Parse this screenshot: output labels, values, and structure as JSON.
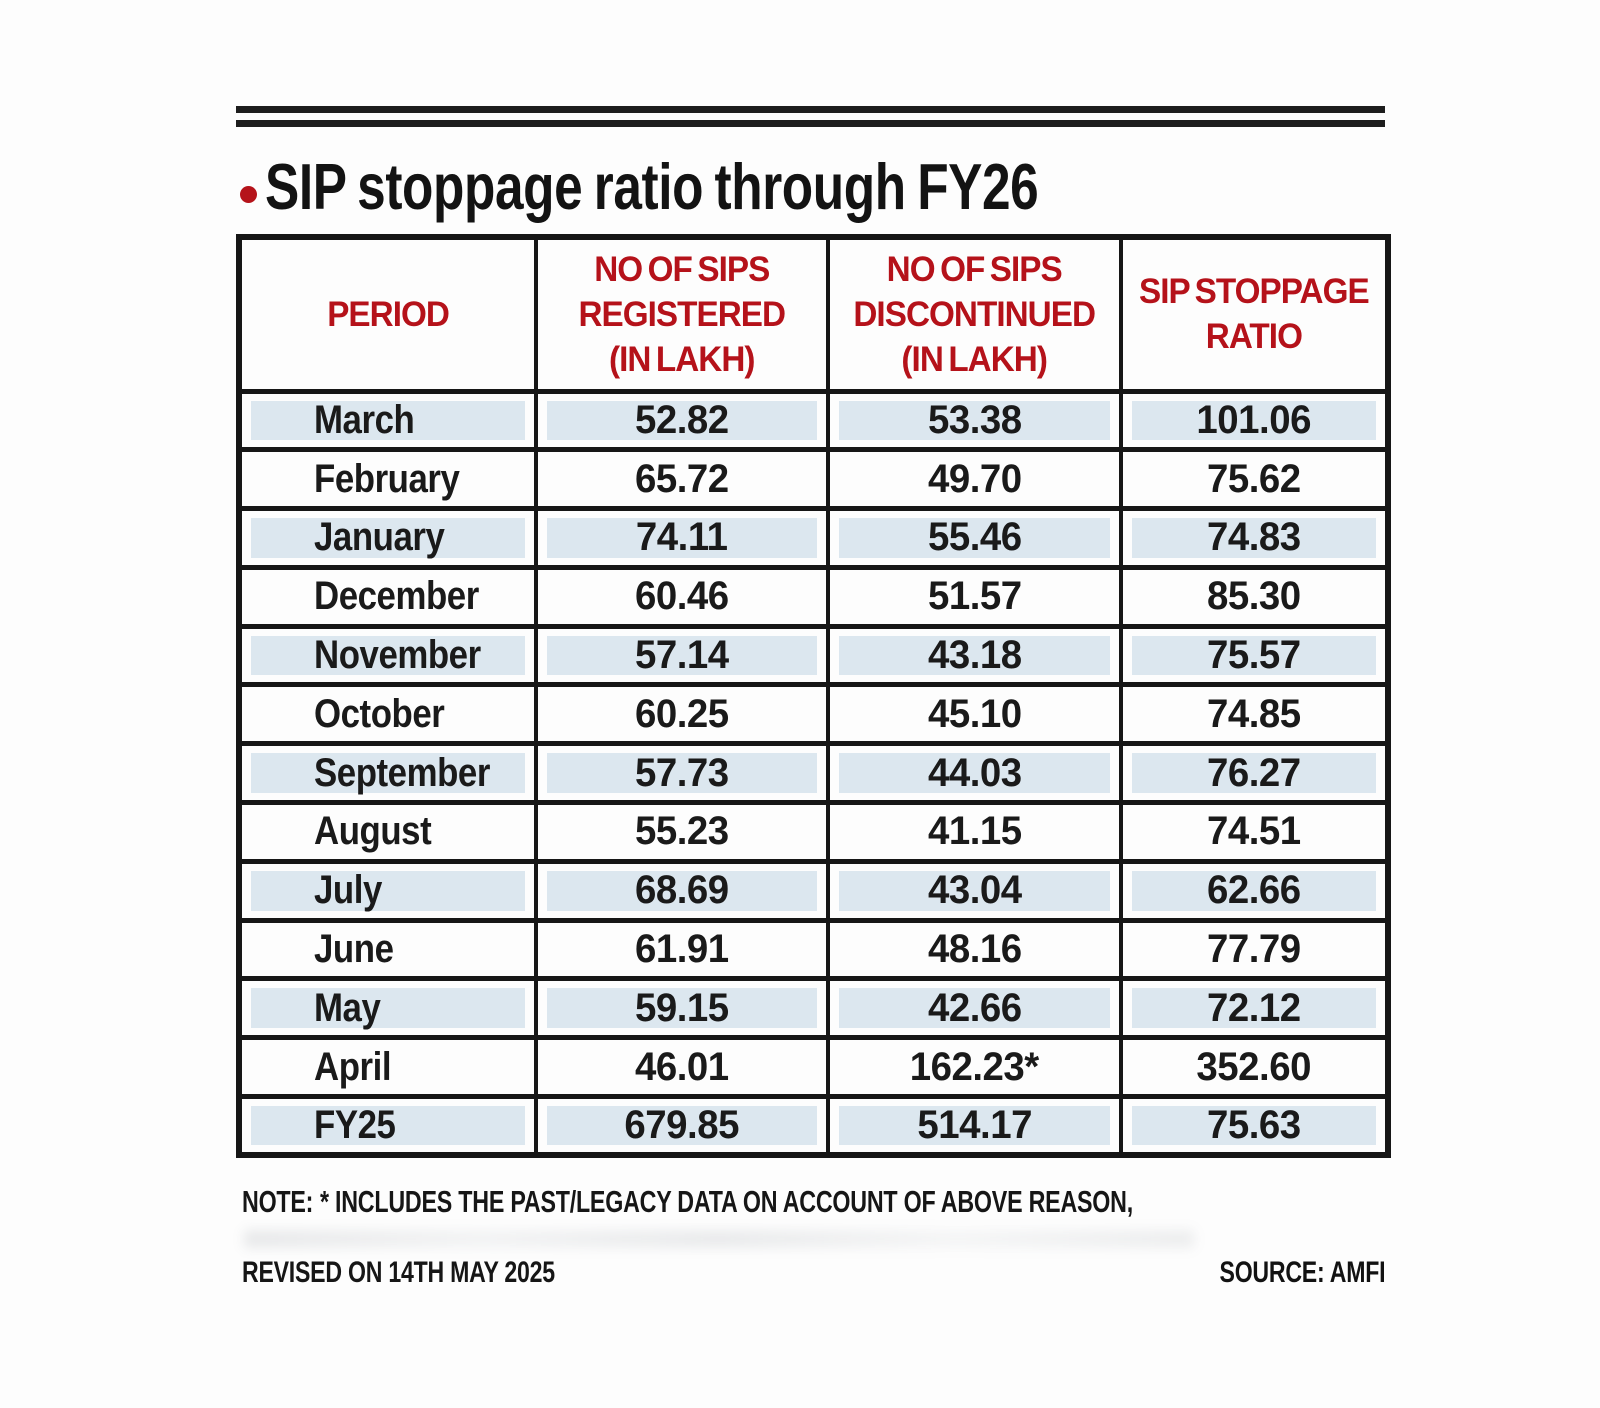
{
  "title": {
    "text": "SIP stoppage ratio through FY26",
    "bullet_color": "#b5131a"
  },
  "colors": {
    "header_red": "#b5121a",
    "band_blue": "#dce7ef",
    "border_black": "#161616"
  },
  "chart_data": {
    "type": "table",
    "title": "SIP stoppage ratio through FY26",
    "columns": [
      "PERIOD",
      "NO OF SIPS REGISTERED (IN LAKH)",
      "NO OF SIPS DISCONTINUED (IN LAKH)",
      "SIP STOPPAGE RATIO"
    ],
    "rows": [
      [
        "March",
        52.82,
        53.38,
        101.06
      ],
      [
        "February",
        65.72,
        49.7,
        75.62
      ],
      [
        "January",
        74.11,
        55.46,
        74.83
      ],
      [
        "December",
        60.46,
        51.57,
        85.3
      ],
      [
        "November",
        57.14,
        43.18,
        75.57
      ],
      [
        "October",
        60.25,
        45.1,
        74.85
      ],
      [
        "September",
        57.73,
        44.03,
        76.27
      ],
      [
        "August",
        55.23,
        41.15,
        74.51
      ],
      [
        "July",
        68.69,
        43.04,
        62.66
      ],
      [
        "June",
        61.91,
        48.16,
        77.79
      ],
      [
        "May",
        59.15,
        42.66,
        72.12
      ],
      [
        "April",
        46.01,
        162.23,
        352.6
      ],
      [
        "FY25",
        679.85,
        514.17,
        75.63
      ]
    ],
    "footnote": "NOTE: * INCLUDES THE PAST/LEGACY DATA ON ACCOUNT OF ABOVE REASON,",
    "source": "AMFI"
  },
  "table": {
    "header_lines": [
      "PERIOD",
      "NO OF SIPS\nREGISTERED\n(IN LAKH)",
      "NO OF SIPS\nDISCONTINUED\n(IN LAKH)",
      "SIP STOPPAGE\nRATIO"
    ],
    "display_rows": [
      {
        "period": "March",
        "registered": "52.82",
        "discontinued": "53.38",
        "ratio": "101.06",
        "band": true
      },
      {
        "period": "February",
        "registered": "65.72",
        "discontinued": "49.70",
        "ratio": "75.62",
        "band": false
      },
      {
        "period": "January",
        "registered": "74.11",
        "discontinued": "55.46",
        "ratio": "74.83",
        "band": true
      },
      {
        "period": "December",
        "registered": "60.46",
        "discontinued": "51.57",
        "ratio": "85.30",
        "band": false
      },
      {
        "period": "November",
        "registered": "57.14",
        "discontinued": "43.18",
        "ratio": "75.57",
        "band": true
      },
      {
        "period": "October",
        "registered": "60.25",
        "discontinued": "45.10",
        "ratio": "74.85",
        "band": false
      },
      {
        "period": "September",
        "registered": "57.73",
        "discontinued": "44.03",
        "ratio": "76.27",
        "band": true
      },
      {
        "period": "August",
        "registered": "55.23",
        "discontinued": "41.15",
        "ratio": "74.51",
        "band": false
      },
      {
        "period": "July",
        "registered": "68.69",
        "discontinued": "43.04",
        "ratio": "62.66",
        "band": true
      },
      {
        "period": "June",
        "registered": "61.91",
        "discontinued": "48.16",
        "ratio": "77.79",
        "band": false
      },
      {
        "period": "May",
        "registered": "59.15",
        "discontinued": "42.66",
        "ratio": "72.12",
        "band": true
      },
      {
        "period": "April",
        "registered": "46.01",
        "discontinued": "162.23*",
        "ratio": "352.60",
        "band": false
      },
      {
        "period": "FY25",
        "registered": "679.85",
        "discontinued": "514.17",
        "ratio": "75.63",
        "band": true
      }
    ]
  },
  "note": {
    "label": "NOTE:",
    "text": "* INCLUDES THE PAST/LEGACY DATA ON ACCOUNT OF ABOVE REASON,"
  },
  "revised": "REVISED ON 14TH MAY 2025",
  "source": {
    "label": "SOURCE:",
    "value": "AMFI"
  }
}
